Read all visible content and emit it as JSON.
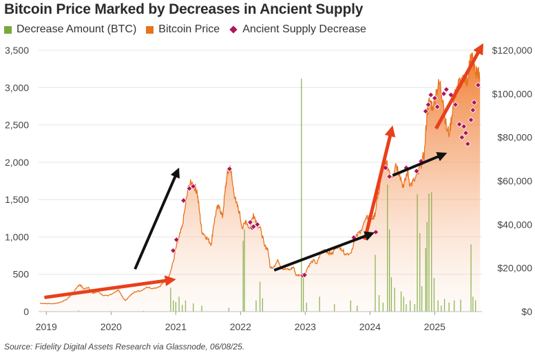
{
  "colors": {
    "decrease_bar": "#7aa83a",
    "price_line": "#e8731f",
    "price_fill_top": "#ee7a2a",
    "diamond": "#b0155a",
    "grid": "#e4e4e4",
    "red_arrow": "#e8401c",
    "black_arrow": "#111111"
  },
  "chart_data": {
    "type": "line",
    "title": "Bitcoin Price Marked by Decreases in Ancient Supply",
    "legend": [
      "Decrease Amount (BTC)",
      "Bitcoin Price",
      "Ancient Supply Decrease"
    ],
    "legend_placement": "top-left",
    "source": "Source: Fidelity Digital Assets Research via Glassnode, 06/08/25.",
    "x_ticks": [
      "2019",
      "2020",
      "2021",
      "2022",
      "2023",
      "2024",
      "2025"
    ],
    "y_left_ticks": [
      "0",
      "500",
      "1,000",
      "1,500",
      "2,000",
      "2,500",
      "3,000",
      "3,500"
    ],
    "y_right_ticks": [
      "$0",
      "$20,000",
      "$40,000",
      "$60,000",
      "$80,000",
      "$100,000",
      "$120,000"
    ],
    "y_left_range": [
      0,
      3500
    ],
    "y_right_range": [
      0,
      120000
    ],
    "x_range": [
      2018.88,
      2025.73
    ],
    "grid": true,
    "series": [
      {
        "name": "Bitcoin Price",
        "axis": "right",
        "points": [
          [
            2018.9,
            3800
          ],
          [
            2019.0,
            3700
          ],
          [
            2019.1,
            3600
          ],
          [
            2019.2,
            4100
          ],
          [
            2019.3,
            5300
          ],
          [
            2019.4,
            8000
          ],
          [
            2019.48,
            11500
          ],
          [
            2019.52,
            12400
          ],
          [
            2019.58,
            10300
          ],
          [
            2019.65,
            11200
          ],
          [
            2019.72,
            8300
          ],
          [
            2019.8,
            9200
          ],
          [
            2019.88,
            7400
          ],
          [
            2019.95,
            7200
          ],
          [
            2020.05,
            8800
          ],
          [
            2020.12,
            9900
          ],
          [
            2020.18,
            6500
          ],
          [
            2020.22,
            5100
          ],
          [
            2020.28,
            6800
          ],
          [
            2020.36,
            9200
          ],
          [
            2020.45,
            9400
          ],
          [
            2020.55,
            11300
          ],
          [
            2020.65,
            10700
          ],
          [
            2020.75,
            11500
          ],
          [
            2020.82,
            13800
          ],
          [
            2020.88,
            15600
          ],
          [
            2020.92,
            18500
          ],
          [
            2020.97,
            24000
          ],
          [
            2021.0,
            29000
          ],
          [
            2021.05,
            34000
          ],
          [
            2021.1,
            39000
          ],
          [
            2021.15,
            49000
          ],
          [
            2021.2,
            58000
          ],
          [
            2021.25,
            59000
          ],
          [
            2021.3,
            57000
          ],
          [
            2021.33,
            55000
          ],
          [
            2021.37,
            45000
          ],
          [
            2021.4,
            37000
          ],
          [
            2021.45,
            35000
          ],
          [
            2021.5,
            33000
          ],
          [
            2021.55,
            31000
          ],
          [
            2021.58,
            39000
          ],
          [
            2021.63,
            47000
          ],
          [
            2021.68,
            48000
          ],
          [
            2021.72,
            43000
          ],
          [
            2021.76,
            55000
          ],
          [
            2021.79,
            62000
          ],
          [
            2021.84,
            67000
          ],
          [
            2021.88,
            58000
          ],
          [
            2021.93,
            50000
          ],
          [
            2021.98,
            46000
          ],
          [
            2022.03,
            38000
          ],
          [
            2022.08,
            42000
          ],
          [
            2022.14,
            38000
          ],
          [
            2022.2,
            45000
          ],
          [
            2022.26,
            40000
          ],
          [
            2022.32,
            37000
          ],
          [
            2022.37,
            30000
          ],
          [
            2022.42,
            29000
          ],
          [
            2022.46,
            20000
          ],
          [
            2022.52,
            21000
          ],
          [
            2022.58,
            23500
          ],
          [
            2022.64,
            20000
          ],
          [
            2022.7,
            19500
          ],
          [
            2022.76,
            19200
          ],
          [
            2022.82,
            20500
          ],
          [
            2022.86,
            16500
          ],
          [
            2022.93,
            17000
          ],
          [
            2022.98,
            16600
          ],
          [
            2023.05,
            21000
          ],
          [
            2023.12,
            23500
          ],
          [
            2023.18,
            22000
          ],
          [
            2023.24,
            27000
          ],
          [
            2023.3,
            28500
          ],
          [
            2023.36,
            27000
          ],
          [
            2023.42,
            26500
          ],
          [
            2023.48,
            30200
          ],
          [
            2023.55,
            29300
          ],
          [
            2023.62,
            26500
          ],
          [
            2023.7,
            26800
          ],
          [
            2023.78,
            34000
          ],
          [
            2023.86,
            37500
          ],
          [
            2023.94,
            42500
          ],
          [
            2024.0,
            44000
          ],
          [
            2024.06,
            42500
          ],
          [
            2024.12,
            52000
          ],
          [
            2024.18,
            63000
          ],
          [
            2024.22,
            70000
          ],
          [
            2024.28,
            66000
          ],
          [
            2024.34,
            62000
          ],
          [
            2024.4,
            68000
          ],
          [
            2024.46,
            63000
          ],
          [
            2024.52,
            57000
          ],
          [
            2024.58,
            65000
          ],
          [
            2024.62,
            58000
          ],
          [
            2024.68,
            60000
          ],
          [
            2024.74,
            63000
          ],
          [
            2024.8,
            69000
          ],
          [
            2024.84,
            72000
          ],
          [
            2024.88,
            91000
          ],
          [
            2024.92,
            97000
          ],
          [
            2024.97,
            94000
          ],
          [
            2025.03,
            102000
          ],
          [
            2025.08,
            105000
          ],
          [
            2025.13,
            97000
          ],
          [
            2025.18,
            84000
          ],
          [
            2025.23,
            82000
          ],
          [
            2025.28,
            94000
          ],
          [
            2025.34,
            103000
          ],
          [
            2025.4,
            106000
          ],
          [
            2025.46,
            105000
          ],
          [
            2025.52,
            108000
          ],
          [
            2025.55,
            118000
          ],
          [
            2025.59,
            116000
          ],
          [
            2025.63,
            109000
          ],
          [
            2025.66,
            111000
          ],
          [
            2025.7,
            106000
          ]
        ]
      },
      {
        "name": "Decrease Amount (BTC)",
        "axis": "left",
        "points": [
          [
            2019.5,
            15
          ],
          [
            2020.5,
            10
          ],
          [
            2020.92,
            320
          ],
          [
            2020.96,
            150
          ],
          [
            2021.0,
            130
          ],
          [
            2021.05,
            200
          ],
          [
            2021.1,
            90
          ],
          [
            2021.15,
            150
          ],
          [
            2021.27,
            110
          ],
          [
            2021.4,
            80
          ],
          [
            2021.82,
            50
          ],
          [
            2022.04,
            950
          ],
          [
            2022.06,
            1100
          ],
          [
            2022.24,
            150
          ],
          [
            2022.3,
            400
          ],
          [
            2022.34,
            180
          ],
          [
            2022.94,
            3120
          ],
          [
            2022.97,
            450
          ],
          [
            2023.02,
            120
          ],
          [
            2023.22,
            200
          ],
          [
            2023.45,
            100
          ],
          [
            2023.7,
            150
          ],
          [
            2023.8,
            80
          ],
          [
            2024.08,
            760
          ],
          [
            2024.14,
            220
          ],
          [
            2024.2,
            120
          ],
          [
            2024.27,
            1700
          ],
          [
            2024.3,
            1100
          ],
          [
            2024.33,
            460
          ],
          [
            2024.38,
            320
          ],
          [
            2024.48,
            270
          ],
          [
            2024.52,
            200
          ],
          [
            2024.56,
            100
          ],
          [
            2024.62,
            150
          ],
          [
            2024.69,
            100
          ],
          [
            2024.73,
            1570
          ],
          [
            2024.77,
            1050
          ],
          [
            2024.8,
            340
          ],
          [
            2024.86,
            850
          ],
          [
            2024.88,
            1200
          ],
          [
            2024.91,
            1580
          ],
          [
            2024.95,
            1600
          ],
          [
            2024.99,
            450
          ],
          [
            2025.05,
            150
          ],
          [
            2025.1,
            80
          ],
          [
            2025.15,
            170
          ],
          [
            2025.22,
            120
          ],
          [
            2025.3,
            150
          ],
          [
            2025.4,
            160
          ],
          [
            2025.56,
            900
          ],
          [
            2025.59,
            200
          ],
          [
            2025.63,
            150
          ]
        ]
      },
      {
        "name": "Ancient Supply Decrease",
        "axis": "right",
        "points": [
          [
            2020.96,
            28000
          ],
          [
            2021.01,
            33000
          ],
          [
            2021.12,
            51000
          ],
          [
            2021.21,
            56500
          ],
          [
            2021.27,
            57500
          ],
          [
            2021.83,
            65500
          ],
          [
            2022.15,
            41000
          ],
          [
            2022.18,
            38500
          ],
          [
            2022.2,
            39000
          ],
          [
            2022.26,
            40000
          ],
          [
            2022.96,
            16600
          ],
          [
            2022.99,
            16800
          ],
          [
            2023.75,
            34000
          ],
          [
            2024.09,
            36500
          ],
          [
            2024.24,
            66000
          ],
          [
            2024.3,
            62000
          ],
          [
            2024.56,
            66000
          ],
          [
            2024.72,
            64500
          ],
          [
            2024.79,
            69000
          ],
          [
            2024.86,
            92000
          ],
          [
            2024.9,
            95000
          ],
          [
            2024.94,
            99500
          ],
          [
            2025.0,
            98000
          ],
          [
            2025.04,
            94000
          ],
          [
            2025.14,
            100000
          ],
          [
            2025.18,
            102000
          ],
          [
            2025.25,
            99500
          ],
          [
            2025.32,
            95000
          ],
          [
            2025.38,
            86000
          ],
          [
            2025.42,
            80000
          ],
          [
            2025.45,
            85000
          ],
          [
            2025.48,
            82000
          ],
          [
            2025.51,
            77000
          ],
          [
            2025.56,
            88000
          ],
          [
            2025.59,
            92500
          ],
          [
            2025.61,
            96000
          ],
          [
            2025.67,
            104000
          ]
        ]
      }
    ],
    "annotations": [
      {
        "type": "red_arrow",
        "from": [
          2018.97,
          6500
        ],
        "to": [
          2020.92,
          14500
        ]
      },
      {
        "type": "black_arrow",
        "from": [
          2020.37,
          19500
        ],
        "to": [
          2021.02,
          64000
        ]
      },
      {
        "type": "red_arrow",
        "from": [
          2023.92,
          33000
        ],
        "to": [
          2024.33,
          83000
        ]
      },
      {
        "type": "black_arrow",
        "from": [
          2022.52,
          19000
        ],
        "to": [
          2024.0,
          35500
        ]
      },
      {
        "type": "black_arrow",
        "from": [
          2024.35,
          62500
        ],
        "to": [
          2025.12,
          72000
        ]
      },
      {
        "type": "red_arrow",
        "from": [
          2025.02,
          84000
        ],
        "to": [
          2025.71,
          121000
        ]
      }
    ]
  }
}
